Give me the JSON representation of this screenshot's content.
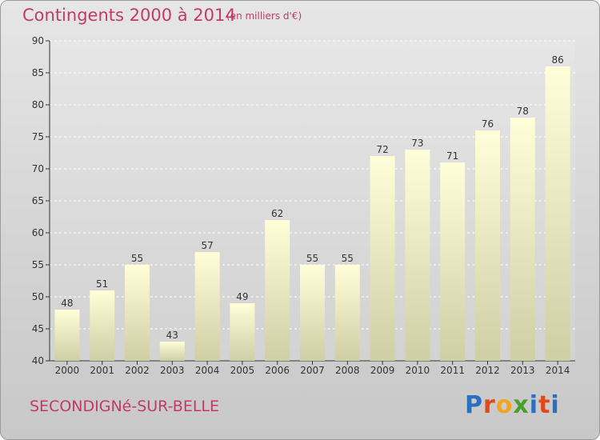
{
  "header": {
    "title": "Contingents 2000 à 2014",
    "subtitle": "(en milliers d'€)"
  },
  "footer": {
    "commune": "SECONDIGNé-SUR-BELLE",
    "logo": "Proxiti"
  },
  "colors": {
    "accent": "#c13a6a",
    "bar_top": "#fefed8",
    "bar_bottom": "#cfcfa6",
    "logo_letters": [
      "#2a6fc0",
      "#e04a1a",
      "#f2a51f",
      "#4a9e2e",
      "#2a6fc0",
      "#e04a1a",
      "#2a6fc0"
    ]
  },
  "chart_data": {
    "type": "bar",
    "title": "Contingents 2000 à 2014",
    "subtitle": "(en milliers d'€)",
    "xlabel": "",
    "ylabel": "",
    "categories": [
      "2000",
      "2001",
      "2002",
      "2003",
      "2004",
      "2005",
      "2006",
      "2007",
      "2008",
      "2009",
      "2010",
      "2011",
      "2012",
      "2013",
      "2014"
    ],
    "values": [
      48,
      51,
      55,
      43,
      57,
      49,
      62,
      55,
      55,
      72,
      73,
      71,
      76,
      78,
      86
    ],
    "ylim": [
      40,
      90
    ],
    "yticks": [
      40,
      45,
      50,
      55,
      60,
      65,
      70,
      75,
      80,
      85,
      90
    ],
    "grid": true,
    "legend": "none"
  }
}
